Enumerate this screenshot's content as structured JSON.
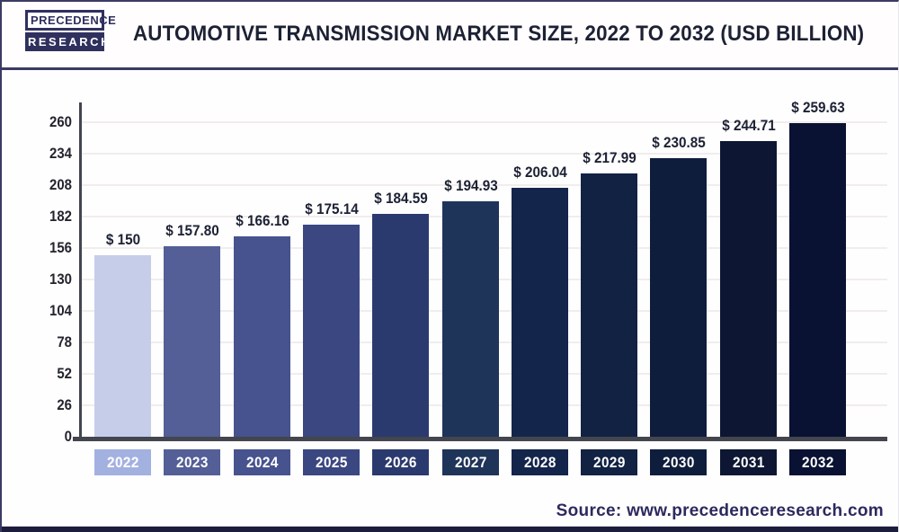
{
  "header": {
    "logo_line1": "PRECEDENCE",
    "logo_line2": "RESEARCH",
    "title": "AUTOMOTIVE TRANSMISSION MARKET SIZE, 2022 TO 2032 (USD BILLION)"
  },
  "chart_data": {
    "type": "bar",
    "title": "Automotive Transmission Market Size, 2022 to 2032 (USD Billion)",
    "categories": [
      "2022",
      "2023",
      "2024",
      "2025",
      "2026",
      "2027",
      "2028",
      "2029",
      "2030",
      "2031",
      "2032"
    ],
    "values": [
      150,
      157.8,
      166.16,
      175.14,
      184.59,
      194.93,
      206.04,
      217.99,
      230.85,
      244.71,
      259.63
    ],
    "value_labels": [
      "$ 150",
      "$ 157.80",
      "$ 166.16",
      "$ 175.14",
      "$ 184.59",
      "$ 194.93",
      "$ 206.04",
      "$ 217.99",
      "$ 230.85",
      "$ 244.71",
      "$ 259.63"
    ],
    "bar_colors": [
      "#c5cde9",
      "#535f96",
      "#47538e",
      "#3a4781",
      "#2b3a6e",
      "#1f3459",
      "#14254b",
      "#112243",
      "#0f1d3d",
      "#0d1733",
      "#0a1233"
    ],
    "x_label_box_colors": [
      "#a3b1e0",
      "#535f96",
      "#47538e",
      "#3a4781",
      "#2b3a6e",
      "#1f3459",
      "#14254b",
      "#112243",
      "#0f1d3d",
      "#0d1733",
      "#0a1233"
    ],
    "xlabel": "",
    "ylabel": "",
    "ylim": [
      0,
      260
    ],
    "yticks": [
      0,
      26,
      52,
      78,
      104,
      130,
      156,
      182,
      208,
      234,
      260
    ],
    "grid": "horizontal-light",
    "legend": "none"
  },
  "footer": {
    "source": "Source: www.precedenceresearch.com"
  },
  "colors": {
    "title_navy": "#1c2134",
    "axis_gray": "#43454f",
    "grid_light": "#f1eded",
    "logo_navy": "#30305f",
    "source_navy": "#2b2a5e",
    "frame_border": "#3a3a63",
    "bottom_strip": "#1c1c3c",
    "x_label_text": "#ffffff"
  }
}
